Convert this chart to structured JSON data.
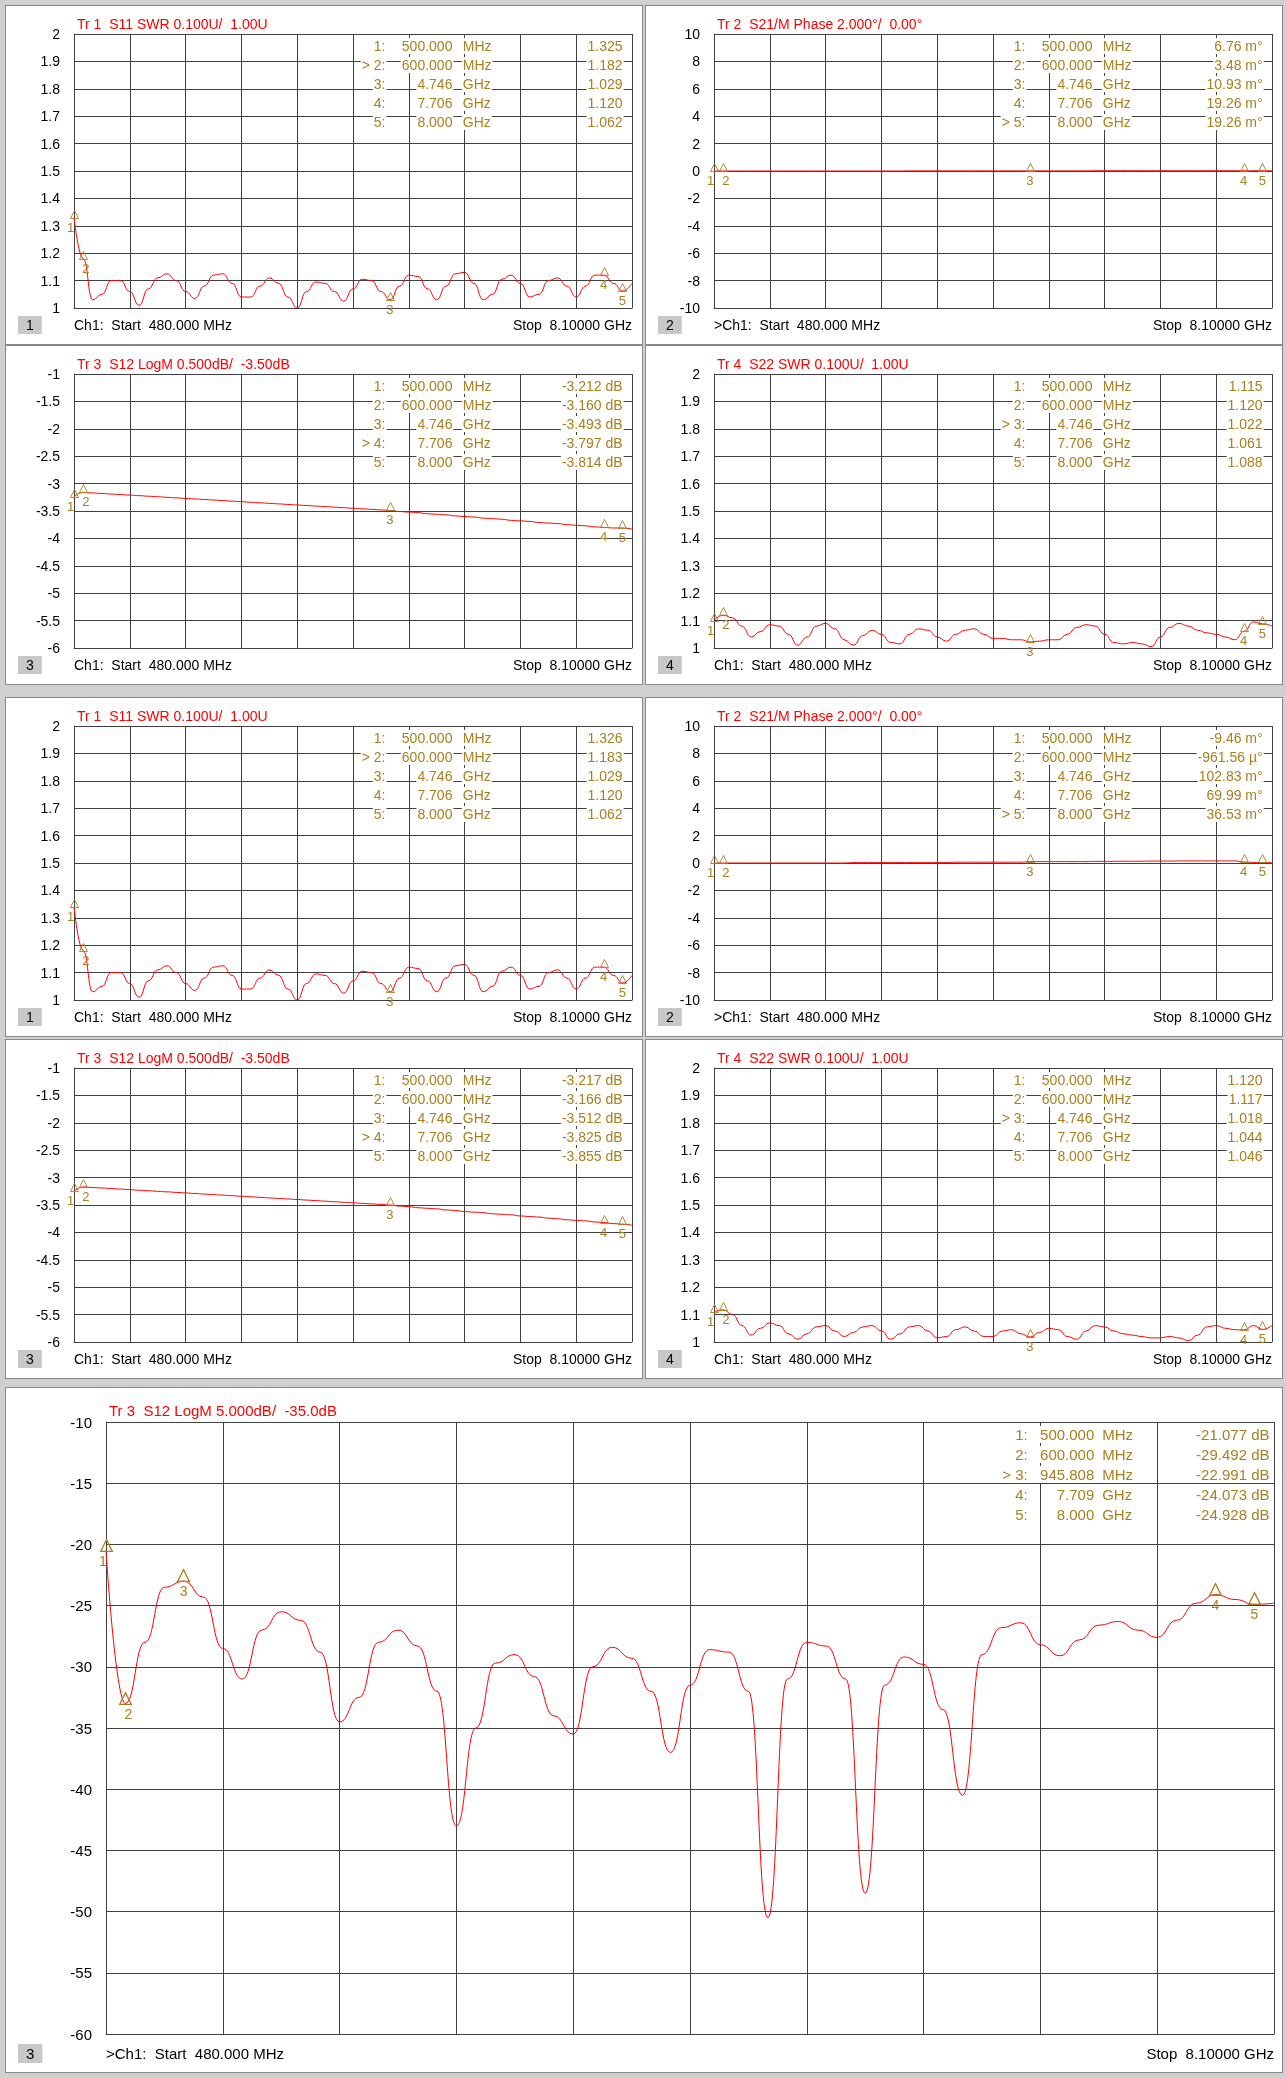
{
  "chart_data": [
    {
      "type": "line",
      "title": "Tr 1  S11 SWR 0.100U/  1.00U",
      "categories": [
        null,
        null,
        null,
        null,
        null,
        null,
        null,
        null,
        null,
        null,
        null,
        null,
        null,
        null,
        null,
        null,
        null,
        null,
        null,
        null,
        null,
        null,
        null,
        null,
        null,
        null,
        null,
        null,
        null,
        null,
        null,
        null,
        null,
        null,
        null,
        null,
        null,
        null,
        null,
        null,
        null,
        null,
        null,
        null,
        null,
        null,
        null,
        null,
        null,
        null,
        null,
        null,
        null,
        null,
        null,
        null,
        null,
        null,
        null,
        null,
        null
      ],
      "ylim": [
        1,
        2
      ],
      "yticks": [
        1,
        1.1,
        1.2,
        1.3,
        1.4,
        1.5,
        1.6,
        1.7,
        1.8,
        1.9,
        2
      ],
      "grid": true,
      "tick_labels": "y",
      "series": [
        {
          "color": "#ff0000",
          "values": [
            1.33,
            1.18,
            1.03,
            1.05,
            1.1,
            1.1,
            1.06,
            1.01,
            1.07,
            1.11,
            1.125,
            1.1,
            1.06,
            1.035,
            1.08,
            1.12,
            1.125,
            1.09,
            1.04,
            1.04,
            1.08,
            1.11,
            1.09,
            1.04,
            1.0,
            1.06,
            1.095,
            1.09,
            1.06,
            1.025,
            1.07,
            1.105,
            1.1,
            1.06,
            1.03,
            1.08,
            1.12,
            1.115,
            1.07,
            1.03,
            1.08,
            1.125,
            1.13,
            1.09,
            1.03,
            1.05,
            1.105,
            1.12,
            1.09,
            1.04,
            1.05,
            1.1,
            1.11,
            1.08,
            1.04,
            1.08,
            1.12,
            1.12,
            1.09,
            1.062,
            1.09
          ]
        }
      ],
      "annotations": [
        "1:  500.000  MHz  1.325",
        "> 2:  600.000  MHz  1.182",
        "3:  4.746  GHz  1.029",
        "4:  7.706  GHz  1.120",
        "5:  8.000  GHz  1.062",
        "Ch1:  Start  480.000 MHz",
        "Stop  8.10000 GHz",
        "1",
        "1",
        "2",
        "3",
        "4",
        "5"
      ]
    },
    {
      "type": "line",
      "title": "Tr 2  S21/M Phase 2.000°/  0.00°",
      "categories": [
        null,
        null,
        null,
        null,
        null,
        null,
        null,
        null,
        null,
        null,
        null,
        null,
        null,
        null,
        null,
        null,
        null,
        null,
        null,
        null,
        null,
        null,
        null,
        null,
        null,
        null,
        null,
        null,
        null,
        null,
        null,
        null,
        null,
        null,
        null,
        null,
        null,
        null,
        null,
        null,
        null,
        null,
        null,
        null,
        null,
        null,
        null,
        null,
        null,
        null,
        null,
        null,
        null,
        null,
        null,
        null,
        null,
        null,
        null,
        null,
        null
      ],
      "ylim": [
        -10,
        10
      ],
      "yticks": [
        -10,
        -8,
        -6,
        -4,
        -2,
        0,
        2,
        4,
        6,
        8,
        10
      ],
      "grid": true,
      "tick_labels": "y",
      "series": [
        {
          "color": "#ff0000",
          "values": [
            0,
            0,
            0,
            0,
            0,
            0,
            0,
            0,
            0,
            0,
            0,
            0,
            0,
            0,
            0,
            0,
            0,
            0,
            0,
            0,
            0,
            0.01,
            0.01,
            0.01,
            0.01,
            0.01,
            0.01,
            0.01,
            0.01,
            0.01,
            0.01,
            0.01,
            0.01,
            0.01,
            0.01,
            0.01,
            0.01,
            0.01,
            0.01,
            0.01,
            0.01,
            0.02,
            0.02,
            0.02,
            0.02,
            0.02,
            0.02,
            0.02,
            0.02,
            0.02,
            0.02,
            0.02,
            0.02,
            0.02,
            0.02,
            0.02,
            0.02,
            0.02,
            0.02,
            0.02,
            0.02
          ]
        }
      ],
      "annotations": [
        "1:  500.000  MHz  6.76 m°",
        "2:  600.000  MHz  3.48 m°",
        "3:  4.746  GHz  10.93 m°",
        "4:  7.706  GHz  19.26 m°",
        "> 5:  8.000  GHz  19.26 m°",
        ">Ch1:  Start  480.000 MHz",
        "Stop  8.10000 GHz",
        "2",
        "1",
        "2",
        "3",
        "4",
        "5"
      ]
    },
    {
      "type": "line",
      "title": "Tr 3  S12 LogM 0.500dB/  -3.50dB",
      "categories": [
        null,
        null,
        null,
        null,
        null,
        null,
        null,
        null,
        null,
        null,
        null,
        null,
        null,
        null,
        null,
        null,
        null,
        null,
        null,
        null,
        null,
        null,
        null,
        null,
        null,
        null,
        null,
        null,
        null,
        null,
        null,
        null,
        null,
        null,
        null,
        null,
        null,
        null,
        null,
        null,
        null,
        null,
        null,
        null,
        null,
        null,
        null,
        null,
        null,
        null,
        null,
        null,
        null,
        null,
        null,
        null,
        null,
        null,
        null,
        null,
        null
      ],
      "ylim": [
        -6,
        -1
      ],
      "yticks": [
        -6,
        -5.5,
        -5,
        -4.5,
        -4,
        -3.5,
        -3,
        -2.5,
        -2,
        -1.5,
        -1
      ],
      "grid": true,
      "tick_labels": "y",
      "series": [
        {
          "color": "#ff0000",
          "values": [
            -3.24,
            -3.16,
            -3.17,
            -3.18,
            -3.19,
            -3.2,
            -3.21,
            -3.22,
            -3.23,
            -3.24,
            -3.25,
            -3.26,
            -3.27,
            -3.28,
            -3.29,
            -3.3,
            -3.31,
            -3.32,
            -3.33,
            -3.34,
            -3.35,
            -3.36,
            -3.37,
            -3.38,
            -3.39,
            -3.4,
            -3.41,
            -3.42,
            -3.43,
            -3.44,
            -3.45,
            -3.46,
            -3.47,
            -3.48,
            -3.49,
            -3.51,
            -3.52,
            -3.53,
            -3.55,
            -3.56,
            -3.57,
            -3.59,
            -3.6,
            -3.61,
            -3.63,
            -3.64,
            -3.65,
            -3.67,
            -3.68,
            -3.69,
            -3.71,
            -3.72,
            -3.73,
            -3.75,
            -3.76,
            -3.77,
            -3.79,
            -3.8,
            -3.81,
            -3.81,
            -3.83
          ]
        }
      ],
      "annotations": [
        "1:  500.000  MHz  -3.212 dB",
        "2:  600.000  MHz  -3.160 dB",
        "3:  4.746  GHz  -3.493 dB",
        "> 4:  7.706  GHz  -3.797 dB",
        "5:  8.000  GHz  -3.814 dB",
        "Ch1:  Start  480.000 MHz",
        "Stop  8.10000 GHz",
        "3",
        "1",
        "2",
        "3",
        "4",
        "5"
      ]
    },
    {
      "type": "line",
      "title": "Tr 4  S22 SWR 0.100U/  1.00U",
      "categories": [
        null,
        null,
        null,
        null,
        null,
        null,
        null,
        null,
        null,
        null,
        null,
        null,
        null,
        null,
        null,
        null,
        null,
        null,
        null,
        null,
        null,
        null,
        null,
        null,
        null,
        null,
        null,
        null,
        null,
        null,
        null,
        null,
        null,
        null,
        null,
        null,
        null,
        null,
        null,
        null,
        null,
        null,
        null,
        null,
        null,
        null,
        null,
        null,
        null,
        null,
        null,
        null,
        null,
        null,
        null,
        null,
        null,
        null,
        null,
        null,
        null
      ],
      "ylim": [
        1,
        2
      ],
      "yticks": [
        1,
        1.1,
        1.2,
        1.3,
        1.4,
        1.5,
        1.6,
        1.7,
        1.8,
        1.9,
        2
      ],
      "grid": true,
      "tick_labels": "y",
      "series": [
        {
          "color": "#ff0000",
          "values": [
            1.1,
            1.12,
            1.11,
            1.08,
            1.04,
            1.06,
            1.085,
            1.08,
            1.05,
            1.01,
            1.04,
            1.08,
            1.09,
            1.07,
            1.03,
            1.01,
            1.045,
            1.065,
            1.05,
            1.02,
            1.015,
            1.05,
            1.07,
            1.065,
            1.04,
            1.025,
            1.05,
            1.065,
            1.07,
            1.05,
            1.035,
            1.035,
            1.03,
            1.03,
            1.022,
            1.025,
            1.03,
            1.03,
            1.05,
            1.075,
            1.085,
            1.08,
            1.05,
            1.02,
            1.015,
            1.02,
            1.015,
            1.005,
            1.04,
            1.075,
            1.09,
            1.08,
            1.065,
            1.055,
            1.05,
            1.04,
            1.03,
            1.061,
            1.095,
            1.088,
            1.08
          ]
        }
      ],
      "annotations": [
        "1:  500.000  MHz  1.115",
        "2:  600.000  MHz  1.120",
        "> 3:  4.746  GHz  1.022",
        "4:  7.706  GHz  1.061",
        "5:  8.000  GHz  1.088",
        "Ch1:  Start  480.000 MHz",
        "Stop  8.10000 GHz",
        "4",
        "1",
        "2",
        "3",
        "4",
        "5"
      ]
    },
    {
      "type": "line",
      "title": "Tr 1  S11 SWR 0.100U/  1.00U",
      "categories": [
        null,
        null,
        null,
        null,
        null,
        null,
        null,
        null,
        null,
        null,
        null,
        null,
        null,
        null,
        null,
        null,
        null,
        null,
        null,
        null,
        null,
        null,
        null,
        null,
        null,
        null,
        null,
        null,
        null,
        null,
        null,
        null,
        null,
        null,
        null,
        null,
        null,
        null,
        null,
        null,
        null,
        null,
        null,
        null,
        null,
        null,
        null,
        null,
        null,
        null,
        null,
        null,
        null,
        null,
        null,
        null,
        null,
        null,
        null,
        null,
        null
      ],
      "ylim": [
        1,
        2
      ],
      "yticks": [
        1,
        1.1,
        1.2,
        1.3,
        1.4,
        1.5,
        1.6,
        1.7,
        1.8,
        1.9,
        2
      ],
      "grid": true,
      "tick_labels": "y",
      "series": [
        {
          "color": "#ff0000",
          "values": [
            1.34,
            1.18,
            1.03,
            1.05,
            1.1,
            1.1,
            1.06,
            1.01,
            1.07,
            1.11,
            1.125,
            1.1,
            1.06,
            1.035,
            1.08,
            1.12,
            1.125,
            1.09,
            1.04,
            1.04,
            1.08,
            1.11,
            1.09,
            1.04,
            1.0,
            1.06,
            1.095,
            1.09,
            1.06,
            1.025,
            1.07,
            1.105,
            1.1,
            1.06,
            1.03,
            1.08,
            1.12,
            1.115,
            1.07,
            1.03,
            1.08,
            1.125,
            1.13,
            1.09,
            1.03,
            1.05,
            1.105,
            1.12,
            1.09,
            1.04,
            1.05,
            1.1,
            1.11,
            1.08,
            1.04,
            1.08,
            1.12,
            1.12,
            1.09,
            1.062,
            1.09
          ]
        }
      ],
      "annotations": [
        "1:  500.000  MHz  1.326",
        "> 2:  600.000  MHz  1.183",
        "3:  4.746  GHz  1.029",
        "4:  7.706  GHz  1.120",
        "5:  8.000  GHz  1.062",
        "Ch1:  Start  480.000 MHz",
        "Stop  8.10000 GHz",
        "1",
        "1",
        "2",
        "3",
        "4",
        "5"
      ]
    },
    {
      "type": "line",
      "title": "Tr 2  S21/M Phase 2.000°/  0.00°",
      "categories": [
        null,
        null,
        null,
        null,
        null,
        null,
        null,
        null,
        null,
        null,
        null,
        null,
        null,
        null,
        null,
        null,
        null,
        null,
        null,
        null,
        null,
        null,
        null,
        null,
        null,
        null,
        null,
        null,
        null,
        null,
        null,
        null,
        null,
        null,
        null,
        null,
        null,
        null,
        null,
        null,
        null,
        null,
        null,
        null,
        null,
        null,
        null,
        null,
        null,
        null,
        null,
        null,
        null,
        null,
        null,
        null,
        null,
        null,
        null,
        null,
        null
      ],
      "ylim": [
        -10,
        10
      ],
      "yticks": [
        -10,
        -8,
        -6,
        -4,
        -2,
        0,
        2,
        4,
        6,
        8,
        10
      ],
      "grid": true,
      "tick_labels": "y",
      "series": [
        {
          "color": "#ff0000",
          "values": [
            -0.01,
            0,
            0,
            0,
            0,
            0,
            0,
            0,
            0,
            0,
            0,
            0,
            0,
            0,
            0,
            0.03,
            0.03,
            0.03,
            0.03,
            0.03,
            0.03,
            0.03,
            0.03,
            0.03,
            0.03,
            0.03,
            0.06,
            0.06,
            0.06,
            0.06,
            0.06,
            0.06,
            0.06,
            0.06,
            0.1,
            0.1,
            0.1,
            0.1,
            0.1,
            0.1,
            0.1,
            0.12,
            0.12,
            0.12,
            0.13,
            0.13,
            0.13,
            0.14,
            0.14,
            0.14,
            0.15,
            0.15,
            0.15,
            0.15,
            0.15,
            0.15,
            0.15,
            0.07,
            0.04,
            0.04,
            0.04
          ]
        }
      ],
      "annotations": [
        "1:  500.000  MHz  -9.46 m°",
        "2:  600.000  MHz  -961.56 µ°",
        "3:  4.746  GHz  102.83 m°",
        "4:  7.706  GHz  69.99 m°",
        "> 5:  8.000  GHz  36.53 m°",
        ">Ch1:  Start  480.000 MHz",
        "Stop  8.10000 GHz",
        "2",
        "1",
        "2",
        "3",
        "4",
        "5"
      ]
    },
    {
      "type": "line",
      "title": "Tr 3  S12 LogM 0.500dB/  -3.50dB",
      "categories": [
        null,
        null,
        null,
        null,
        null,
        null,
        null,
        null,
        null,
        null,
        null,
        null,
        null,
        null,
        null,
        null,
        null,
        null,
        null,
        null,
        null,
        null,
        null,
        null,
        null,
        null,
        null,
        null,
        null,
        null,
        null,
        null,
        null,
        null,
        null,
        null,
        null,
        null,
        null,
        null,
        null,
        null,
        null,
        null,
        null,
        null,
        null,
        null,
        null,
        null,
        null,
        null,
        null,
        null,
        null,
        null,
        null,
        null,
        null,
        null,
        null
      ],
      "ylim": [
        -6,
        -1
      ],
      "yticks": [
        -6,
        -5.5,
        -5,
        -4.5,
        -4,
        -3.5,
        -3,
        -2.5,
        -2,
        -1.5,
        -1
      ],
      "grid": true,
      "tick_labels": "y",
      "series": [
        {
          "color": "#ff0000",
          "values": [
            -3.25,
            -3.17,
            -3.18,
            -3.19,
            -3.2,
            -3.21,
            -3.22,
            -3.23,
            -3.24,
            -3.25,
            -3.26,
            -3.27,
            -3.28,
            -3.29,
            -3.3,
            -3.31,
            -3.32,
            -3.33,
            -3.34,
            -3.35,
            -3.36,
            -3.37,
            -3.38,
            -3.39,
            -3.4,
            -3.41,
            -3.42,
            -3.43,
            -3.44,
            -3.45,
            -3.46,
            -3.47,
            -3.48,
            -3.49,
            -3.5,
            -3.52,
            -3.53,
            -3.55,
            -3.56,
            -3.57,
            -3.59,
            -3.6,
            -3.62,
            -3.63,
            -3.64,
            -3.66,
            -3.67,
            -3.68,
            -3.7,
            -3.71,
            -3.72,
            -3.74,
            -3.75,
            -3.77,
            -3.78,
            -3.79,
            -3.81,
            -3.82,
            -3.84,
            -3.85,
            -3.87
          ]
        }
      ],
      "annotations": [
        "1:  500.000  MHz  -3.217 dB",
        "2:  600.000  MHz  -3.166 dB",
        "3:  4.746  GHz  -3.512 dB",
        "> 4:  7.706  GHz  -3.825 dB",
        "5:  8.000  GHz  -3.855 dB",
        "Ch1:  Start  480.000 MHz",
        "Stop  8.10000 GHz",
        "3",
        "1",
        "2",
        "3",
        "4",
        "5"
      ]
    },
    {
      "type": "line",
      "title": "Tr 4  S22 SWR 0.100U/  1.00U",
      "categories": [
        null,
        null,
        null,
        null,
        null,
        null,
        null,
        null,
        null,
        null,
        null,
        null,
        null,
        null,
        null,
        null,
        null,
        null,
        null,
        null,
        null,
        null,
        null,
        null,
        null,
        null,
        null,
        null,
        null,
        null,
        null,
        null,
        null,
        null,
        null,
        null,
        null,
        null,
        null,
        null,
        null,
        null,
        null,
        null,
        null,
        null,
        null,
        null,
        null,
        null,
        null,
        null,
        null,
        null,
        null,
        null,
        null,
        null,
        null,
        null,
        null
      ],
      "ylim": [
        1,
        2
      ],
      "yticks": [
        1,
        1.1,
        1.2,
        1.3,
        1.4,
        1.5,
        1.6,
        1.7,
        1.8,
        1.9,
        2
      ],
      "grid": true,
      "tick_labels": "y",
      "series": [
        {
          "color": "#ff0000",
          "values": [
            1.11,
            1.117,
            1.1,
            1.06,
            1.025,
            1.05,
            1.07,
            1.06,
            1.03,
            1.01,
            1.03,
            1.055,
            1.06,
            1.04,
            1.02,
            1.035,
            1.055,
            1.06,
            1.04,
            1.01,
            1.03,
            1.055,
            1.06,
            1.04,
            1.015,
            1.02,
            1.045,
            1.055,
            1.04,
            1.02,
            1.02,
            1.04,
            1.045,
            1.03,
            1.018,
            1.035,
            1.05,
            1.045,
            1.02,
            1.01,
            1.04,
            1.06,
            1.055,
            1.04,
            1.03,
            1.025,
            1.02,
            1.015,
            1.015,
            1.02,
            1.015,
            1.005,
            1.025,
            1.055,
            1.06,
            1.05,
            1.045,
            1.044,
            1.06,
            1.046,
            1.06
          ]
        }
      ],
      "annotations": [
        "1:  500.000  MHz  1.120",
        "2:  600.000  MHz  1.117",
        "> 3:  4.746  GHz  1.018",
        "4:  7.706  GHz  1.044",
        "5:  8.000  GHz  1.046",
        "Ch1:  Start  480.000 MHz",
        "Stop  8.10000 GHz",
        "4",
        "1",
        "2",
        "3",
        "4",
        "5"
      ]
    },
    {
      "type": "line",
      "title": "Tr 3  S12 LogM 5.000dB/  -35.0dB",
      "categories": [
        null,
        null,
        null,
        null,
        null,
        null,
        null,
        null,
        null,
        null,
        null,
        null,
        null,
        null,
        null,
        null,
        null,
        null,
        null,
        null,
        null,
        null,
        null,
        null,
        null,
        null,
        null,
        null,
        null,
        null,
        null,
        null,
        null,
        null,
        null,
        null,
        null,
        null,
        null,
        null,
        null,
        null,
        null,
        null,
        null,
        null,
        null,
        null,
        null,
        null,
        null,
        null,
        null,
        null,
        null,
        null,
        null,
        null,
        null,
        null,
        null
      ],
      "ylim": [
        -60,
        -10
      ],
      "yticks": [
        -60,
        -55,
        -50,
        -45,
        -40,
        -35,
        -30,
        -25,
        -20,
        -15,
        -10
      ],
      "grid": true,
      "tick_labels": "y",
      "series": [
        {
          "color": "#ff0000",
          "values": [
            -20.5,
            -33.0,
            -28.0,
            -23.5,
            -23.0,
            -24.3,
            -28.5,
            -31.0,
            -27.0,
            -25.5,
            -26.2,
            -28.8,
            -34.5,
            -32.5,
            -28.0,
            -27.0,
            -28.3,
            -32.0,
            -43.0,
            -35.0,
            -29.7,
            -29.0,
            -30.8,
            -34.0,
            -35.5,
            -30.0,
            -28.4,
            -29.3,
            -32.0,
            -37.0,
            -31.5,
            -28.6,
            -28.8,
            -32.0,
            -50.5,
            -31.0,
            -28.0,
            -28.3,
            -31.0,
            -48.5,
            -31.5,
            -29.2,
            -29.8,
            -33.5,
            -40.5,
            -29.0,
            -26.8,
            -26.4,
            -28.2,
            -29.1,
            -27.8,
            -26.6,
            -26.3,
            -27.0,
            -27.6,
            -26.2,
            -24.8,
            -24.1,
            -24.5,
            -24.9,
            -24.8
          ]
        }
      ],
      "annotations": [
        "1:  500.000  MHz  -21.077 dB",
        "2:  600.000  MHz  -29.492 dB",
        "> 3:  945.808  MHz  -22.991 dB",
        "4:  7.709  GHz  -24.073 dB",
        "5:  8.000  GHz  -24.928 dB",
        ">Ch1:  Start  480.000 MHz",
        "Stop  8.10000 GHz",
        "3",
        "1",
        "2",
        "3",
        "4",
        "5"
      ]
    }
  ]
}
